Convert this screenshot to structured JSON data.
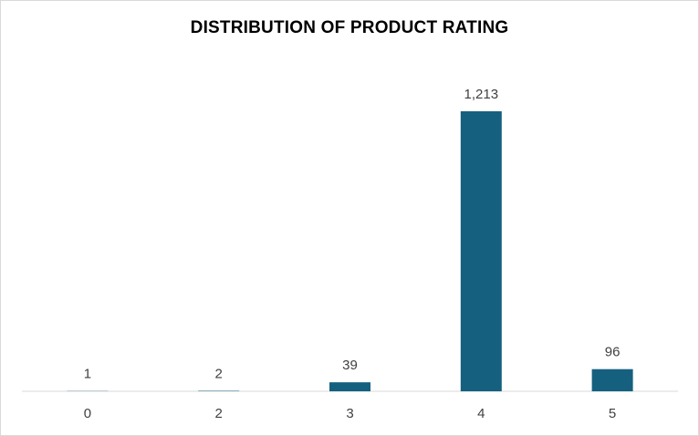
{
  "chart_data": {
    "type": "bar",
    "title": "DISTRIBUTION OF PRODUCT RATING",
    "categories": [
      "0",
      "2",
      "3",
      "4",
      "5"
    ],
    "values": [
      1,
      2,
      39,
      1213,
      96
    ],
    "data_labels": [
      "1",
      "2",
      "39",
      "1,213",
      "96"
    ],
    "ylim": [
      0,
      1213
    ],
    "xlabel": "",
    "ylabel": "",
    "grid": false,
    "legend": "none",
    "bar_color": "#16607f",
    "axis_color": "#d9d9d9"
  }
}
